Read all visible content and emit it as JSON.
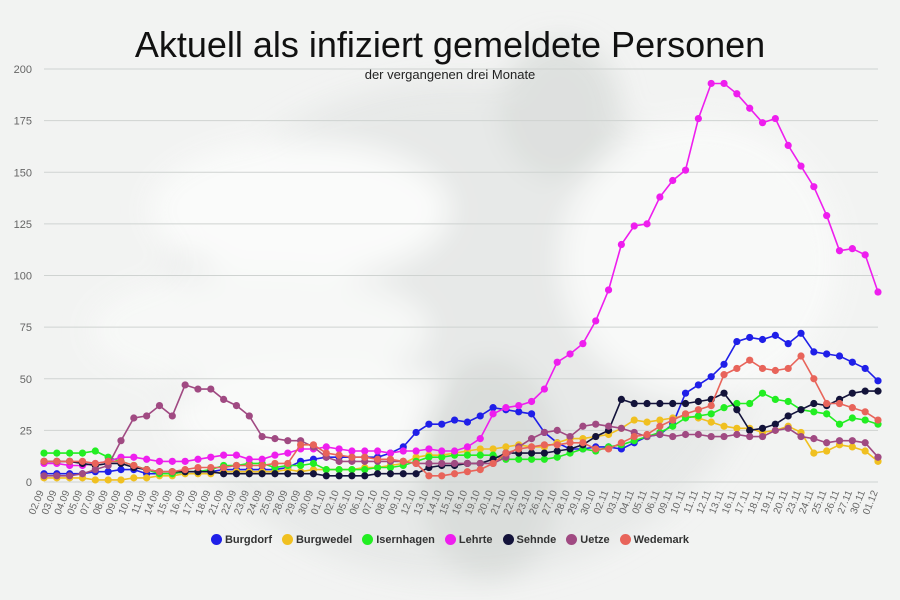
{
  "title": "Aktuell als infiziert gemeldete Personen",
  "subtitle": "der vergangenen drei Monate",
  "chart_data": {
    "type": "line",
    "ylim": [
      0,
      200
    ],
    "yticks": [
      0,
      25,
      50,
      75,
      100,
      125,
      150,
      175,
      200
    ],
    "grid": true,
    "legend_position": "bottom",
    "categories": [
      "02.09",
      "03.09",
      "04.09",
      "05.09",
      "07.09",
      "08.09",
      "09.09",
      "10.09",
      "11.09",
      "14.09",
      "15.09",
      "16.09",
      "17.09",
      "18.09",
      "21.09",
      "22.09",
      "23.09",
      "24.09",
      "25.09",
      "28.09",
      "29.09",
      "30.09",
      "01.10",
      "02.10",
      "05.10",
      "06.10",
      "07.10",
      "08.10",
      "09.10",
      "12.10",
      "13.10",
      "14.10",
      "15.10",
      "16.10",
      "19.10",
      "20.10",
      "21.10",
      "22.10",
      "23.10",
      "26.10",
      "27.10",
      "28.10",
      "29.10",
      "30.10",
      "02.11",
      "03.11",
      "04.11",
      "05.11",
      "06.11",
      "09.11",
      "10.11",
      "11.11",
      "12.11",
      "13.11",
      "16.11",
      "17.11",
      "18.11",
      "19.11",
      "20.11",
      "23.11",
      "24.11",
      "25.11",
      "26.11",
      "27.11",
      "30.11",
      "01.12"
    ],
    "series": [
      {
        "name": "Burgdorf",
        "color": "#1f1fe8",
        "values": [
          4,
          4,
          4,
          4,
          5,
          5,
          6,
          6,
          4,
          4,
          4,
          5,
          5,
          5,
          6,
          6,
          6,
          6,
          6,
          7,
          10,
          11,
          12,
          12,
          12,
          12,
          12,
          14,
          17,
          24,
          28,
          28,
          30,
          29,
          32,
          36,
          35,
          34,
          33,
          24,
          19,
          16,
          16,
          17,
          17,
          16,
          19,
          22,
          23,
          28,
          43,
          47,
          51,
          57,
          68,
          70,
          69,
          71,
          67,
          72,
          63,
          62,
          61,
          58,
          55,
          49
        ]
      },
      {
        "name": "Burgwedel",
        "color": "#f0c020",
        "values": [
          2,
          2,
          2,
          2,
          1,
          1,
          1,
          2,
          2,
          3,
          3,
          4,
          4,
          4,
          5,
          5,
          5,
          5,
          5,
          6,
          5,
          6,
          6,
          6,
          6,
          7,
          7,
          8,
          9,
          12,
          13,
          13,
          14,
          15,
          16,
          16,
          17,
          18,
          17,
          17,
          19,
          21,
          21,
          22,
          23,
          26,
          30,
          29,
          30,
          31,
          32,
          31,
          29,
          27,
          26,
          26,
          24,
          25,
          27,
          24,
          14,
          15,
          18,
          17,
          15,
          10
        ]
      },
      {
        "name": "Isernhagen",
        "color": "#22ee22",
        "values": [
          14,
          14,
          14,
          14,
          15,
          12,
          10,
          8,
          6,
          4,
          4,
          5,
          5,
          6,
          8,
          8,
          9,
          9,
          7,
          8,
          8,
          9,
          6,
          6,
          6,
          6,
          7,
          7,
          8,
          10,
          12,
          12,
          13,
          13,
          13,
          13,
          11,
          11,
          11,
          11,
          12,
          14,
          16,
          15,
          17,
          18,
          20,
          22,
          24,
          27,
          31,
          32,
          33,
          36,
          38,
          38,
          43,
          40,
          39,
          35,
          34,
          33,
          28,
          31,
          30,
          28
        ]
      },
      {
        "name": "Lehrte",
        "color": "#ee1eee",
        "values": [
          9,
          9,
          8,
          8,
          9,
          10,
          12,
          12,
          11,
          10,
          10,
          10,
          11,
          12,
          13,
          13,
          11,
          11,
          13,
          14,
          16,
          16,
          17,
          16,
          15,
          15,
          15,
          14,
          15,
          15,
          16,
          15,
          15,
          17,
          21,
          33,
          36,
          37,
          39,
          45,
          58,
          62,
          67,
          78,
          93,
          115,
          124,
          125,
          138,
          146,
          151,
          176,
          193,
          193,
          188,
          181,
          174,
          176,
          163,
          153,
          143,
          129,
          112,
          113,
          110,
          92
        ]
      },
      {
        "name": "Sehnde",
        "color": "#13133a",
        "values": [
          10,
          10,
          10,
          9,
          8,
          9,
          9,
          7,
          6,
          5,
          5,
          5,
          5,
          5,
          4,
          4,
          4,
          4,
          4,
          4,
          4,
          4,
          3,
          3,
          3,
          3,
          4,
          4,
          4,
          4,
          7,
          8,
          8,
          9,
          9,
          11,
          14,
          14,
          14,
          14,
          15,
          16,
          18,
          22,
          25,
          40,
          38,
          38,
          38,
          38,
          38,
          39,
          40,
          43,
          35,
          25,
          26,
          28,
          32,
          35,
          38,
          37,
          40,
          43,
          44,
          44
        ]
      },
      {
        "name": "Uetze",
        "color": "#a04a82",
        "values": [
          3,
          3,
          3,
          4,
          6,
          8,
          20,
          31,
          32,
          37,
          32,
          47,
          45,
          45,
          40,
          37,
          32,
          22,
          21,
          20,
          20,
          17,
          12,
          10,
          10,
          10,
          10,
          10,
          10,
          9,
          9,
          9,
          9,
          9,
          9,
          9,
          12,
          17,
          21,
          24,
          25,
          22,
          27,
          28,
          27,
          26,
          24,
          22,
          23,
          22,
          23,
          23,
          22,
          22,
          23,
          22,
          22,
          25,
          26,
          22,
          21,
          19,
          20,
          20,
          19,
          12
        ]
      },
      {
        "name": "Wedemark",
        "color": "#e8645a",
        "values": [
          10,
          10,
          10,
          10,
          9,
          10,
          10,
          8,
          6,
          5,
          5,
          6,
          7,
          7,
          7,
          8,
          8,
          8,
          9,
          9,
          18,
          18,
          14,
          13,
          12,
          12,
          11,
          11,
          10,
          9,
          3,
          3,
          4,
          5,
          6,
          9,
          14,
          16,
          17,
          18,
          18,
          19,
          19,
          16,
          16,
          19,
          22,
          23,
          27,
          30,
          33,
          35,
          37,
          52,
          55,
          59,
          55,
          54,
          55,
          61,
          50,
          38,
          38,
          36,
          34,
          30
        ]
      }
    ]
  }
}
